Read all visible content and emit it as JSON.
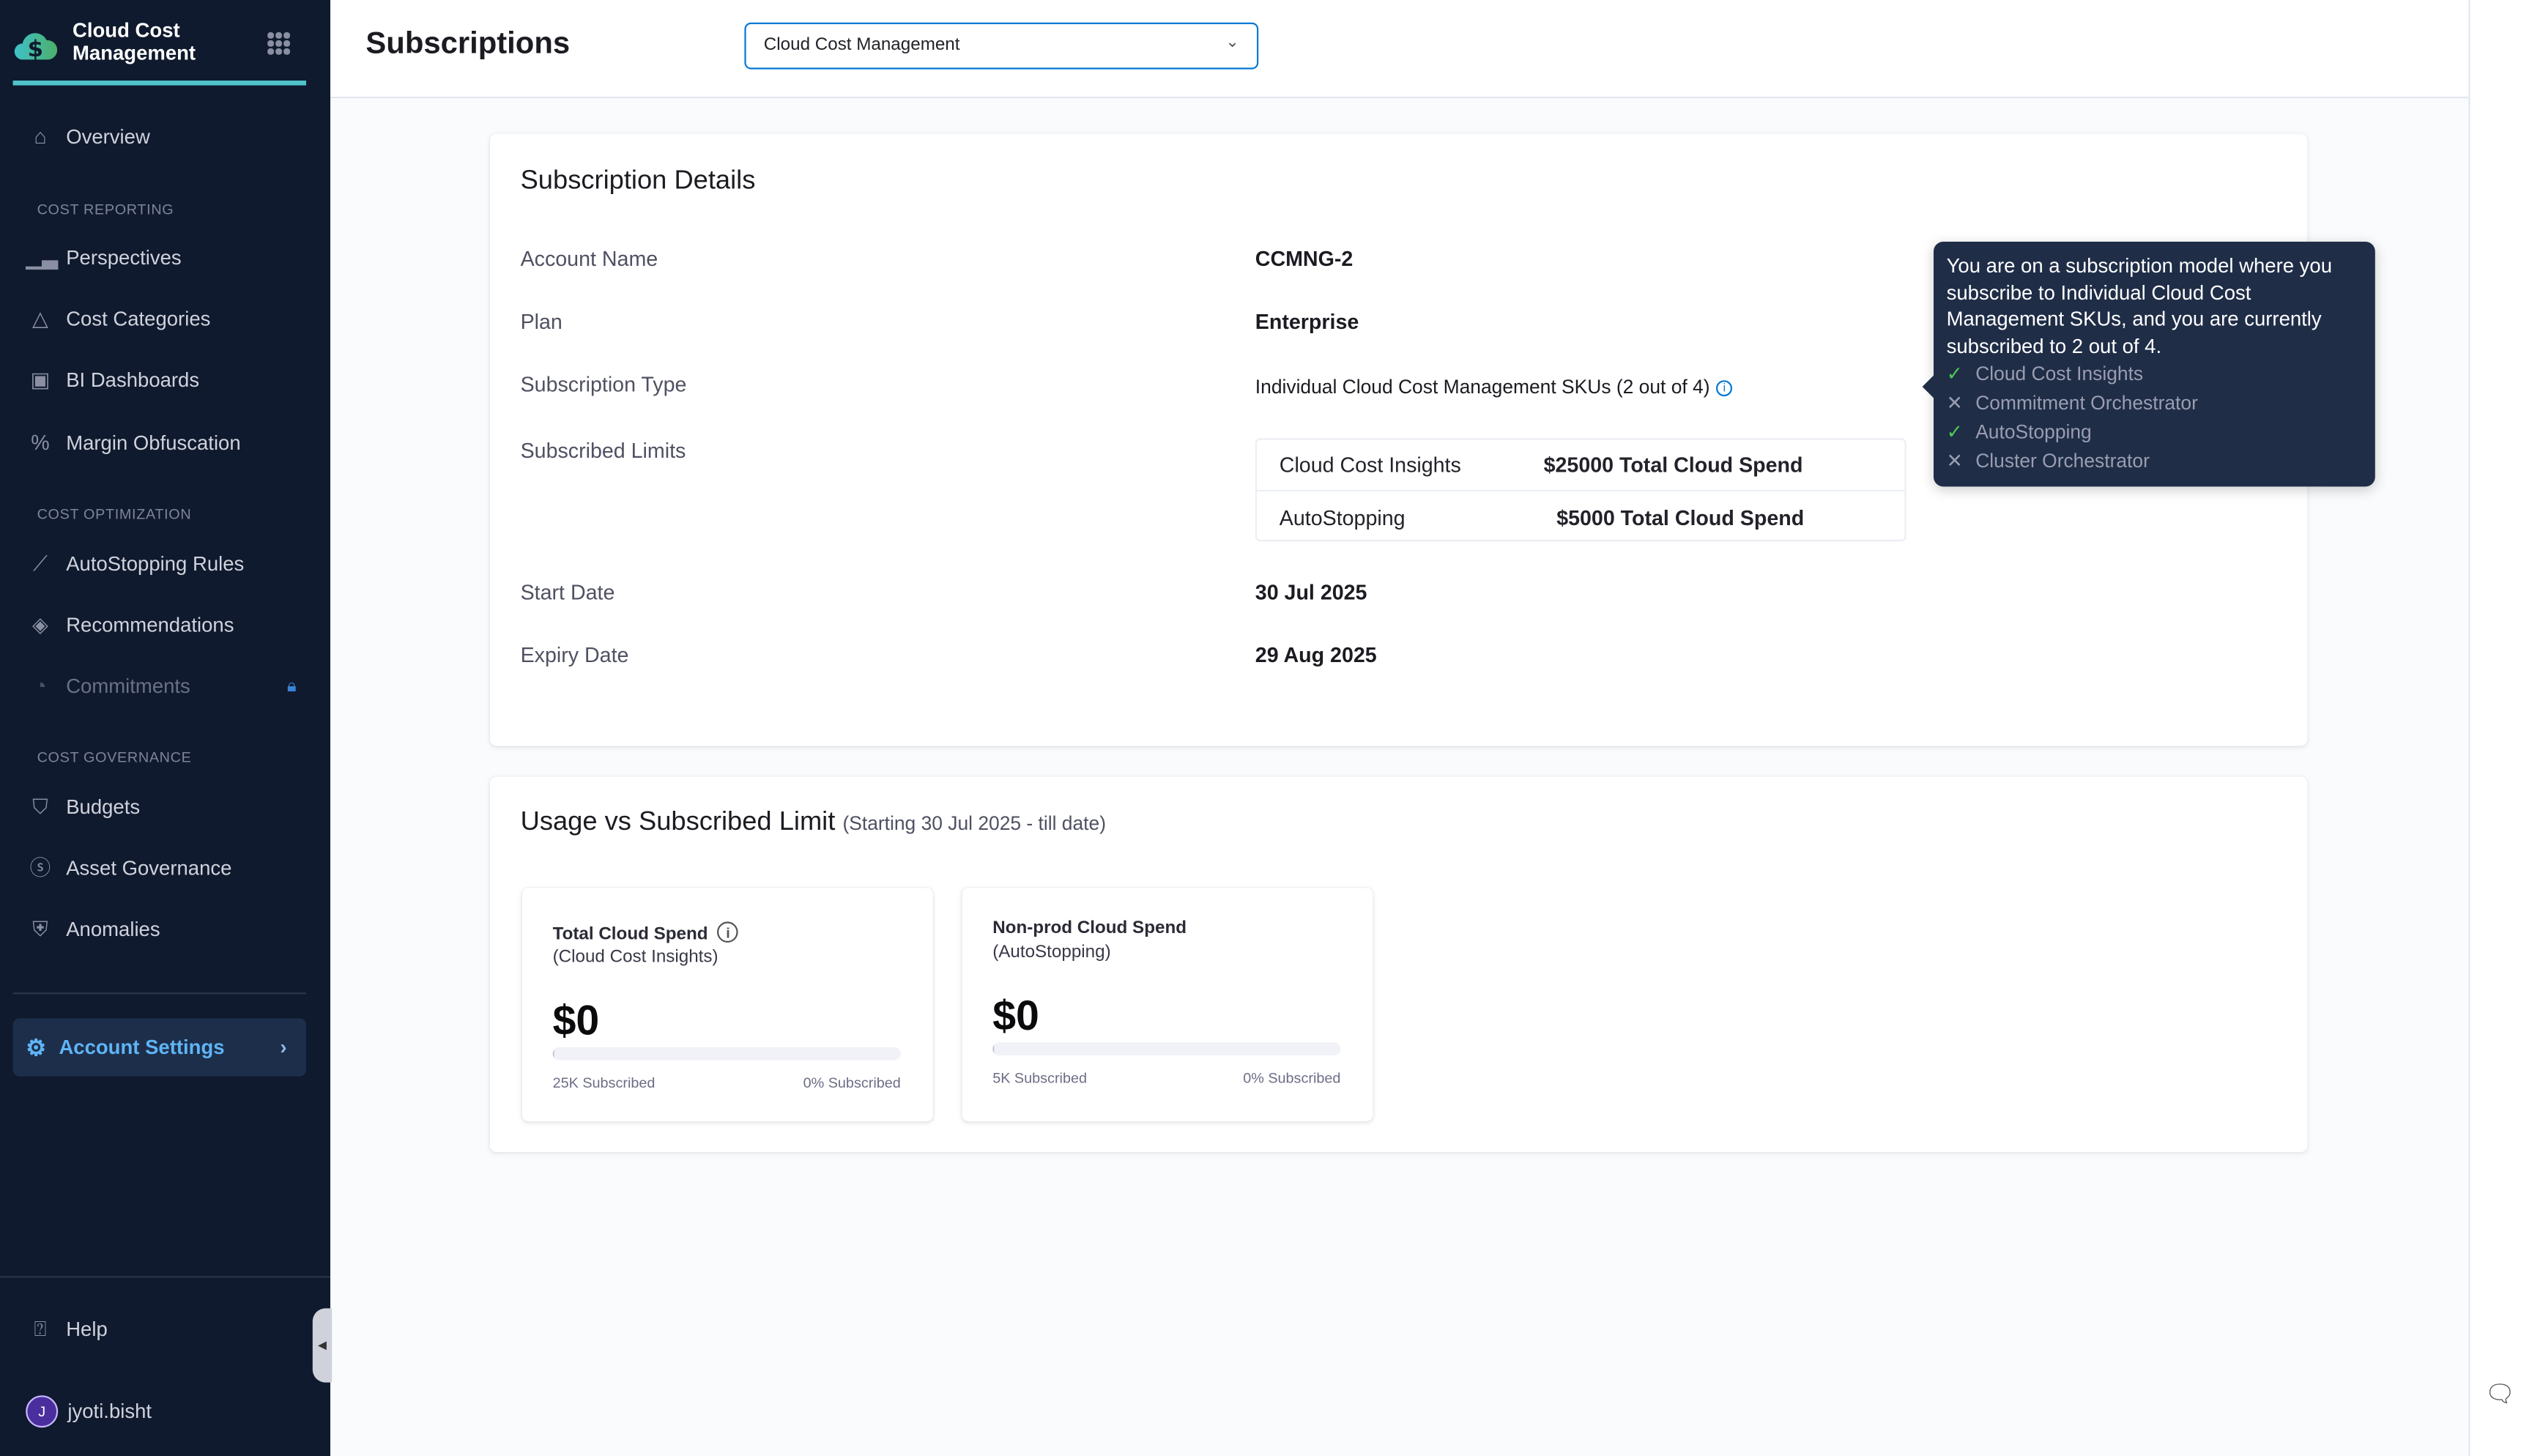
{
  "sidebar": {
    "brand": "Cloud Cost Management",
    "overview": "Overview",
    "sections": [
      "COST REPORTING",
      "COST OPTIMIZATION",
      "COST GOVERNANCE"
    ],
    "reporting": [
      "Perspectives",
      "Cost Categories",
      "BI Dashboards",
      "Margin Obfuscation"
    ],
    "optimization": [
      "AutoStopping Rules",
      "Recommendations",
      "Commitments"
    ],
    "governance": [
      "Budgets",
      "Asset Governance",
      "Anomalies"
    ],
    "account_settings": "Account Settings",
    "help": "Help",
    "user": "jyoti.bisht",
    "user_initial": "J"
  },
  "header": {
    "title": "Subscriptions",
    "module_select": "Cloud Cost Management"
  },
  "details": {
    "title": "Subscription Details",
    "account_name_label": "Account Name",
    "account_name": "CCMNG-2",
    "plan_label": "Plan",
    "plan": "Enterprise",
    "type_label": "Subscription Type",
    "type": "Individual Cloud Cost Management SKUs (2 out of 4)",
    "limits_label": "Subscribed Limits",
    "limits": [
      {
        "name": "Cloud Cost Insights",
        "value": "$25000 Total Cloud Spend"
      },
      {
        "name": "AutoStopping",
        "value": "$5000 Total Cloud Spend"
      }
    ],
    "start_label": "Start Date",
    "start": "30 Jul 2025",
    "expiry_label": "Expiry Date",
    "expiry": "29 Aug 2025"
  },
  "tooltip": {
    "text": "You are on a subscription model where you subscribe to Individual Cloud Cost Management SKUs, and you are currently subscribed to 2 out of 4.",
    "items": [
      {
        "label": "Cloud Cost Insights",
        "subscribed": true
      },
      {
        "label": "Commitment Orchestrator",
        "subscribed": false
      },
      {
        "label": "AutoStopping",
        "subscribed": true
      },
      {
        "label": "Cluster Orchestrator",
        "subscribed": false
      }
    ]
  },
  "usage": {
    "title": "Usage vs Subscribed Limit",
    "range": "(Starting 30 Jul 2025 - till date)",
    "cards": [
      {
        "title": "Total Cloud Spend",
        "subtitle": "(Cloud Cost Insights)",
        "amount": "$0",
        "progress_percent": 0,
        "limit": "25K Subscribed",
        "percent": "0% Subscribed"
      },
      {
        "title": "Non-prod Cloud Spend",
        "subtitle": "(AutoStopping)",
        "amount": "$0",
        "progress_percent": 0,
        "limit": "5K Subscribed",
        "percent": "0% Subscribed"
      }
    ]
  },
  "colors": {
    "sidebar_bg": "#0f1a2e",
    "accent": "#0278d5",
    "brand_underline": "#4fc3c9",
    "tooltip_bg": "#1f2d47",
    "check": "#4dc952"
  }
}
